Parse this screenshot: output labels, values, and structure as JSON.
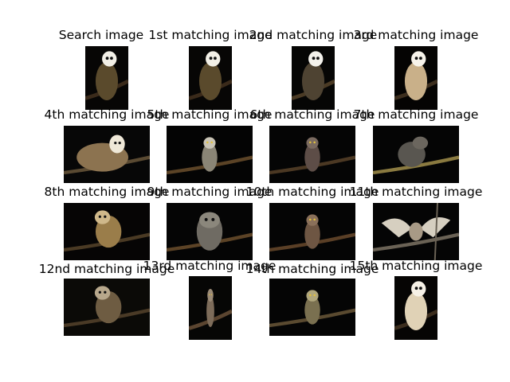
{
  "figure": {
    "cells": [
      {
        "title": "Search image",
        "thumb": {
          "bg": "#070605",
          "body": "#5a4a2c",
          "face": "#f2efe6",
          "style": "barn",
          "branch": "#3a2a1a"
        }
      },
      {
        "title": "1st matching image",
        "thumb": {
          "bg": "#070605",
          "body": "#5a4a2c",
          "face": "#f2efe6",
          "style": "barn",
          "branch": "#3a2a1a"
        }
      },
      {
        "title": "2nd matching image",
        "thumb": {
          "bg": "#060605",
          "body": "#4e4332",
          "face": "#f4f2ec",
          "style": "barn",
          "branch": "#4a3a24"
        }
      },
      {
        "title": "3rd matching image",
        "thumb": {
          "bg": "#050403",
          "body": "#c9b089",
          "face": "#f7f3ea",
          "style": "barn-standing",
          "branch": "#3c2e1e"
        }
      },
      {
        "title": "4th matching image",
        "thumb": {
          "bg": "#070707",
          "body": "#8c7350",
          "face": "#efe8d8",
          "style": "barn-wide",
          "branch": "#5a4a32"
        }
      },
      {
        "title": "5th matching image",
        "thumb": {
          "bg": "#040404",
          "body": "#8a8576",
          "face": "#c9c4b5",
          "style": "small",
          "branch": "#5b4326"
        }
      },
      {
        "title": "6th matching image",
        "thumb": {
          "bg": "#050505",
          "body": "#5d4d47",
          "face": "#7a6a60",
          "style": "small",
          "branch": "#4b3823"
        }
      },
      {
        "title": "7th matching image",
        "thumb": {
          "bg": "#050505",
          "body": "#595650",
          "face": "#6b665e",
          "style": "crouch",
          "branch": "#8a7a40"
        }
      },
      {
        "title": "8th matching image",
        "thumb": {
          "bg": "#060505",
          "body": "#9a7d4a",
          "face": "#cfb88a",
          "style": "side",
          "branch": "#4a3a24"
        }
      },
      {
        "title": "9th matching image",
        "thumb": {
          "bg": "#050505",
          "body": "#6f6b63",
          "face": "#8b877c",
          "style": "big-grey",
          "branch": "#5c4326"
        }
      },
      {
        "title": "10th matching image",
        "thumb": {
          "bg": "#050505",
          "body": "#6e5643",
          "face": "#8a705a",
          "style": "small",
          "branch": "#5a3f26"
        }
      },
      {
        "title": "11th matching image",
        "thumb": {
          "bg": "#050505",
          "body": "#d6cfc0",
          "face": "#a89a86",
          "style": "wings",
          "branch": "#6a6255"
        }
      },
      {
        "title": "12nd matching image",
        "thumb": {
          "bg": "#0b0a07",
          "body": "#6e5c42",
          "face": "#b8a88c",
          "style": "side",
          "branch": "#4a3a26"
        }
      },
      {
        "title": "13rd matching image",
        "thumb": {
          "bg": "#060605",
          "body": "#7d6c5a",
          "face": "#9a8a76",
          "style": "small",
          "branch": "#5b4530"
        }
      },
      {
        "title": "14th matching image",
        "thumb": {
          "bg": "#050505",
          "body": "#7a7050",
          "face": "#b0a67c",
          "style": "small",
          "branch": "#5a4a30"
        }
      },
      {
        "title": "15th matching image",
        "thumb": {
          "bg": "#060504",
          "body": "#e0d2b6",
          "face": "#f6f1e6",
          "style": "barn-standing",
          "branch": "#3b2d1d"
        }
      }
    ]
  }
}
